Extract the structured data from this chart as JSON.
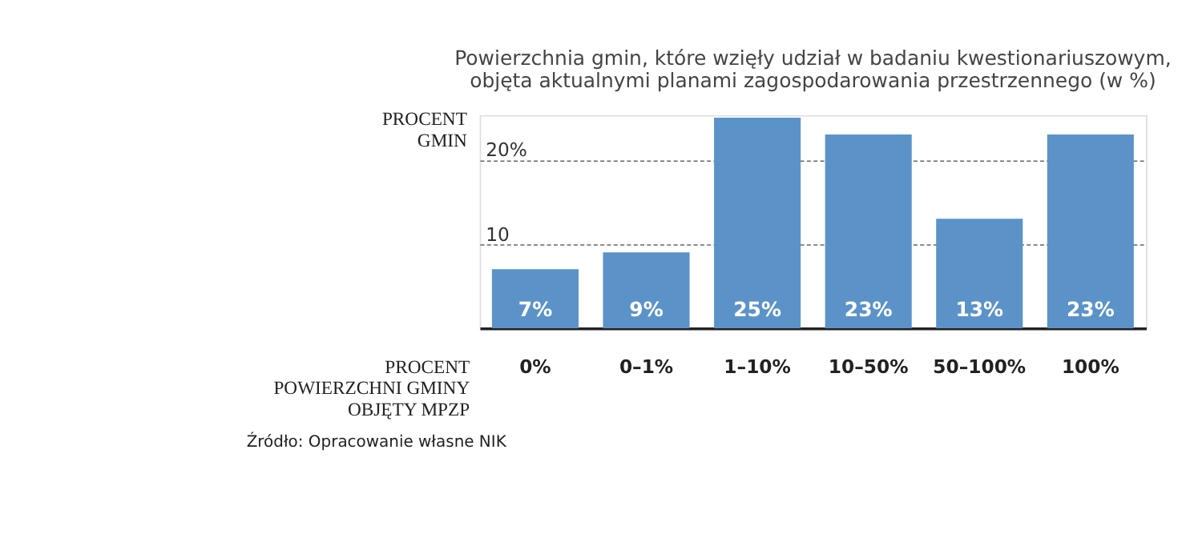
{
  "chart_data": {
    "type": "bar",
    "title": "Powierzchnia gmin, które wzięły udział w badaniu kwestionariuszowym, objęta aktualnymi planami zagospodarowania przestrzennego (w %)",
    "ylabel": "PROCENT GMIN",
    "xlabel": "PROCENT POWIERZCHNI GMINY OBJĘTY MPZP",
    "categories": [
      "0%",
      "0–1%",
      "1–10%",
      "10–50%",
      "50–100%",
      "100%"
    ],
    "values": [
      7,
      9,
      25,
      23,
      13,
      23
    ],
    "value_labels": [
      "7%",
      "9%",
      "25%",
      "23%",
      "13%",
      "23%"
    ],
    "color": "#5b93c9",
    "ylim": [
      0,
      25.3
    ],
    "yticks": [
      10,
      {
        "value": 20,
        "label": "20%"
      }
    ],
    "grid": "y",
    "annotations": [
      "Źródło: Opracowanie własne NIK"
    ]
  }
}
